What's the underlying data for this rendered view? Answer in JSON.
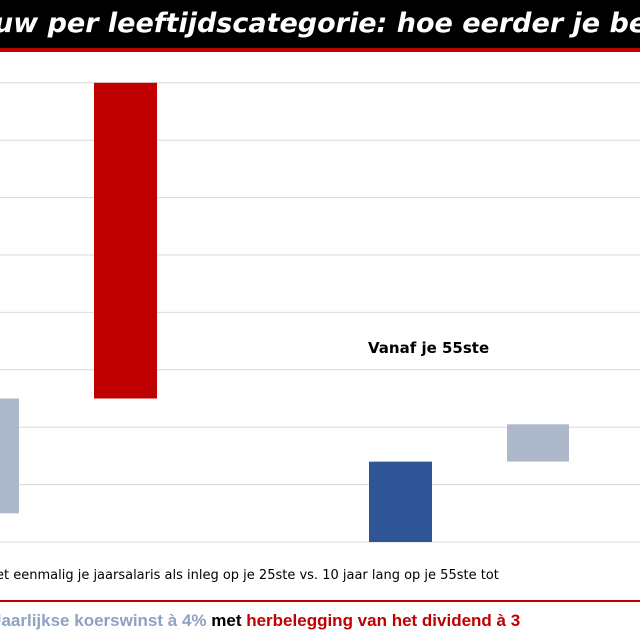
{
  "chart_data": {
    "type": "bar",
    "variant": "waterfall",
    "title": "uw per leeftijdscategorie: hoe eerder je beg",
    "xlabel": "et eenmalig je jaarsalaris als inleg op je 25ste vs. 10 jaar lang op je 55ste tot",
    "annotation": "Vanaf je 55ste",
    "ylim": [
      0,
      8
    ],
    "grid": true,
    "bars": [
      {
        "key": "grey-left",
        "start": 0.5,
        "end": 2.5,
        "color": "#adb9ca"
      },
      {
        "key": "red-big",
        "start": 2.5,
        "end": 8.0,
        "color": "#c00000"
      },
      {
        "key": "blue",
        "start": 0.0,
        "end": 1.4,
        "color": "#2f5597"
      },
      {
        "key": "grey-right",
        "start": 1.4,
        "end": 2.05,
        "color": "#adb9ca"
      }
    ]
  },
  "footer": {
    "part1": "Jaarlijkse koerswinst",
    "part2": " à 4% ",
    "part3": "met ",
    "part4": "herbelegging van het dividend à 3"
  },
  "colors": {
    "accent": "#c00000",
    "grid": "#d9d9d9"
  }
}
